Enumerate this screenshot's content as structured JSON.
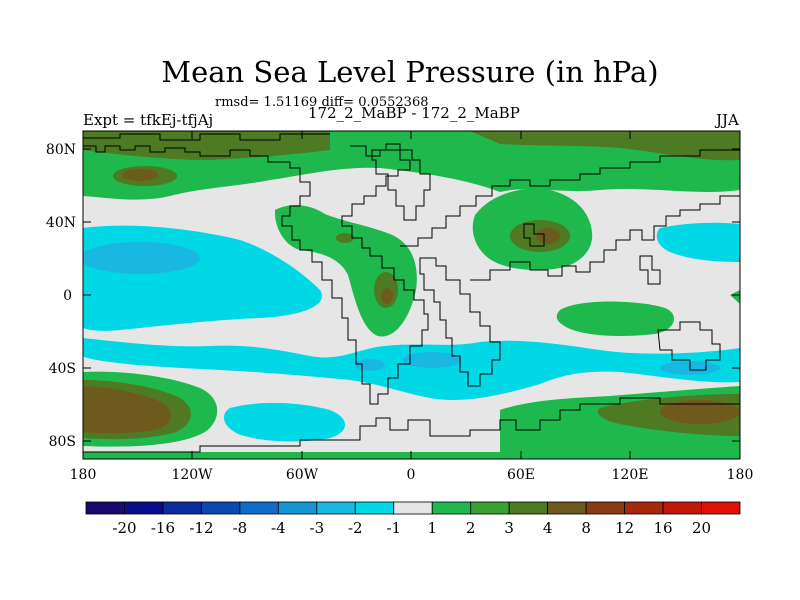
{
  "title": "Mean Sea Level Pressure (in hPa)",
  "stats": "rmsd= 1.51169 diff= 0.0552368",
  "experiment": "Expt = tfkEj-tfjAj",
  "subtitle": "172_2_MaBP - 172_2_MaBP",
  "season": "JJA",
  "map": {
    "lat_labels": [
      "80N",
      "40N",
      "0",
      "40S",
      "80S"
    ],
    "lon_labels": [
      "180",
      "120W",
      "60W",
      "0",
      "60E",
      "120E",
      "180"
    ]
  },
  "colorbar": {
    "labels": [
      "-20",
      "-16",
      "-12",
      "-8",
      "-4",
      "-3",
      "-2",
      "-1",
      "1",
      "2",
      "3",
      "4",
      "8",
      "12",
      "16",
      "20"
    ],
    "colors": [
      "#1a0a6e",
      "#0a0c8a",
      "#0b2e9c",
      "#0a4ab0",
      "#0f6cc8",
      "#1496d4",
      "#19b8e2",
      "#00d8e6",
      "#e6e6e6",
      "#1fb84c",
      "#3aa033",
      "#4d7a22",
      "#6e5a1c",
      "#8a3a12",
      "#a8280c",
      "#c0180a",
      "#e01008"
    ]
  },
  "colors": {
    "land_outline": "#000000",
    "neutral": "#e6e6e6",
    "positive_weak": "#1fb84c",
    "positive_mid": "#4d7a22",
    "positive_strong": "#6e5a1c",
    "negative_weak": "#00d8e6",
    "negative_mid": "#19b8e2"
  }
}
